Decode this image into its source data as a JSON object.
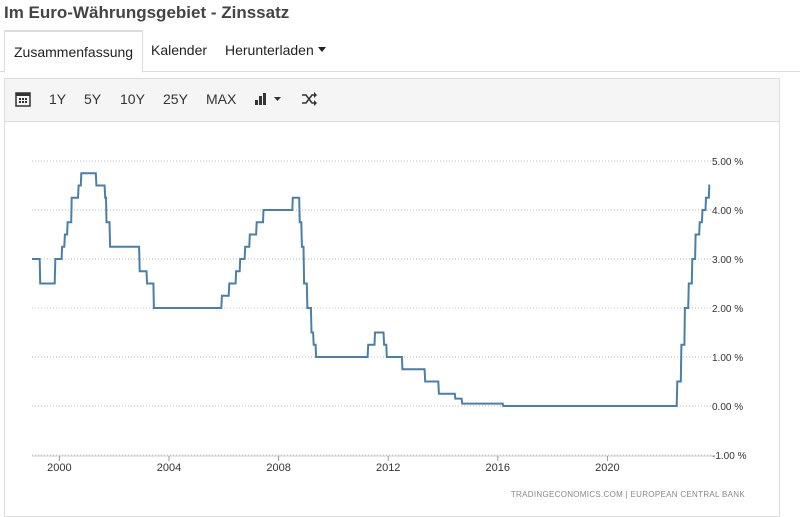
{
  "header": {
    "title": "Im Euro-Währungsgebiet - Zinssatz"
  },
  "tabs": [
    "Zusammenfassung",
    "Kalender",
    "Herunterladen"
  ],
  "toolbar": {
    "ranges": [
      "1Y",
      "5Y",
      "10Y",
      "25Y",
      "MAX"
    ]
  },
  "chart_data": {
    "type": "line",
    "color": "#4a7fa8",
    "grid": true,
    "source": "TRADINGECONOMICS.COM  |  EUROPEAN CENTRAL BANK",
    "x": [
      1999.0,
      1999.28,
      1999.3,
      1999.83,
      1999.85,
      2000.08,
      2000.1,
      2000.18,
      2000.2,
      2000.28,
      2000.3,
      2000.43,
      2000.45,
      2000.68,
      2000.7,
      2000.78,
      2000.8,
      2001.33,
      2001.35,
      2001.65,
      2001.67,
      2001.7,
      2001.72,
      2001.83,
      2001.85,
      2002.91,
      2002.93,
      2003.18,
      2003.2,
      2003.43,
      2003.45,
      2005.91,
      2005.93,
      2006.18,
      2006.2,
      2006.43,
      2006.45,
      2006.58,
      2006.6,
      2006.76,
      2006.78,
      2006.93,
      2006.95,
      2007.18,
      2007.2,
      2007.43,
      2007.45,
      2008.5,
      2008.52,
      2008.75,
      2008.77,
      2008.83,
      2008.85,
      2008.91,
      2008.93,
      2009.03,
      2009.05,
      2009.18,
      2009.2,
      2009.26,
      2009.28,
      2009.35,
      2009.37,
      2011.25,
      2011.27,
      2011.5,
      2011.52,
      2011.83,
      2011.85,
      2011.93,
      2011.95,
      2012.5,
      2012.52,
      2013.33,
      2013.35,
      2013.83,
      2013.85,
      2014.43,
      2014.45,
      2014.68,
      2014.7,
      2016.18,
      2016.2,
      2022.53,
      2022.55,
      2022.68,
      2022.7,
      2022.81,
      2022.83,
      2022.95,
      2022.97,
      2023.08,
      2023.1,
      2023.2,
      2023.22,
      2023.35,
      2023.37,
      2023.45,
      2023.47,
      2023.58,
      2023.6,
      2023.7,
      2023.72,
      2023.75
    ],
    "values": [
      3.0,
      3.0,
      2.5,
      2.5,
      3.0,
      3.0,
      3.25,
      3.25,
      3.5,
      3.5,
      3.75,
      3.75,
      4.25,
      4.25,
      4.5,
      4.5,
      4.75,
      4.75,
      4.5,
      4.5,
      4.25,
      4.25,
      3.75,
      3.75,
      3.25,
      3.25,
      2.75,
      2.75,
      2.5,
      2.5,
      2.0,
      2.0,
      2.25,
      2.25,
      2.5,
      2.5,
      2.75,
      2.75,
      3.0,
      3.0,
      3.25,
      3.25,
      3.5,
      3.5,
      3.75,
      3.75,
      4.0,
      4.0,
      4.25,
      4.25,
      3.75,
      3.75,
      3.25,
      3.25,
      2.5,
      2.5,
      2.0,
      2.0,
      1.5,
      1.5,
      1.25,
      1.25,
      1.0,
      1.0,
      1.25,
      1.25,
      1.5,
      1.5,
      1.25,
      1.25,
      1.0,
      1.0,
      0.75,
      0.75,
      0.5,
      0.5,
      0.25,
      0.25,
      0.15,
      0.15,
      0.05,
      0.05,
      0.0,
      0.0,
      0.5,
      0.5,
      1.25,
      1.25,
      2.0,
      2.0,
      2.5,
      2.5,
      3.0,
      3.0,
      3.5,
      3.5,
      3.75,
      3.75,
      4.0,
      4.0,
      4.25,
      4.25,
      4.5,
      4.5
    ],
    "xlim": [
      1999,
      2024
    ],
    "xticks": [
      2000,
      2004,
      2008,
      2012,
      2016,
      2020
    ],
    "ylim": [
      -1,
      5
    ],
    "yticks": [
      {
        "value": 5,
        "label": "5.00 %"
      },
      {
        "value": 4,
        "label": "4.00 %"
      },
      {
        "value": 3,
        "label": "3.00 %"
      },
      {
        "value": 2,
        "label": "2.00 %"
      },
      {
        "value": 1,
        "label": "1.00 %"
      },
      {
        "value": 0,
        "label": "0.00 %"
      },
      {
        "value": -1,
        "label": "-1.00 %"
      }
    ]
  }
}
